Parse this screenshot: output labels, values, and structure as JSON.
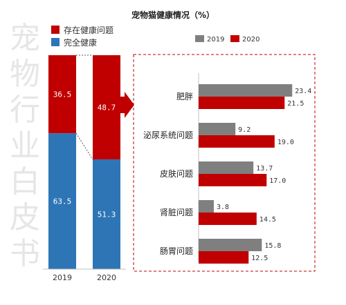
{
  "title": "宠物猫健康情况（%）",
  "watermark": "宠物行业白皮书",
  "colors": {
    "gray": "#7f7f7f",
    "red": "#c00000",
    "blue": "#2e75b6",
    "dash": "#c00000"
  },
  "chart_data": [
    {
      "type": "bar",
      "stacked": true,
      "categories": [
        "2019",
        "2020"
      ],
      "series": [
        {
          "name": "存在健康问题",
          "values": [
            36.5,
            48.7
          ],
          "color": "#c00000"
        },
        {
          "name": "完全健康",
          "values": [
            63.5,
            51.3
          ],
          "color": "#2e75b6"
        }
      ],
      "ylim": [
        0,
        100
      ],
      "legend": "top-left"
    },
    {
      "type": "bar",
      "orientation": "horizontal",
      "categories": [
        "肥胖",
        "泌尿系统问题",
        "皮肤问题",
        "肾脏问题",
        "肠胃问题"
      ],
      "series": [
        {
          "name": "2019",
          "values": [
            23.4,
            9.2,
            13.7,
            3.8,
            15.8
          ],
          "color": "#7f7f7f"
        },
        {
          "name": "2020",
          "values": [
            21.5,
            19.0,
            17.0,
            14.5,
            12.5
          ],
          "color": "#c00000"
        }
      ],
      "legend": "top-center"
    }
  ]
}
